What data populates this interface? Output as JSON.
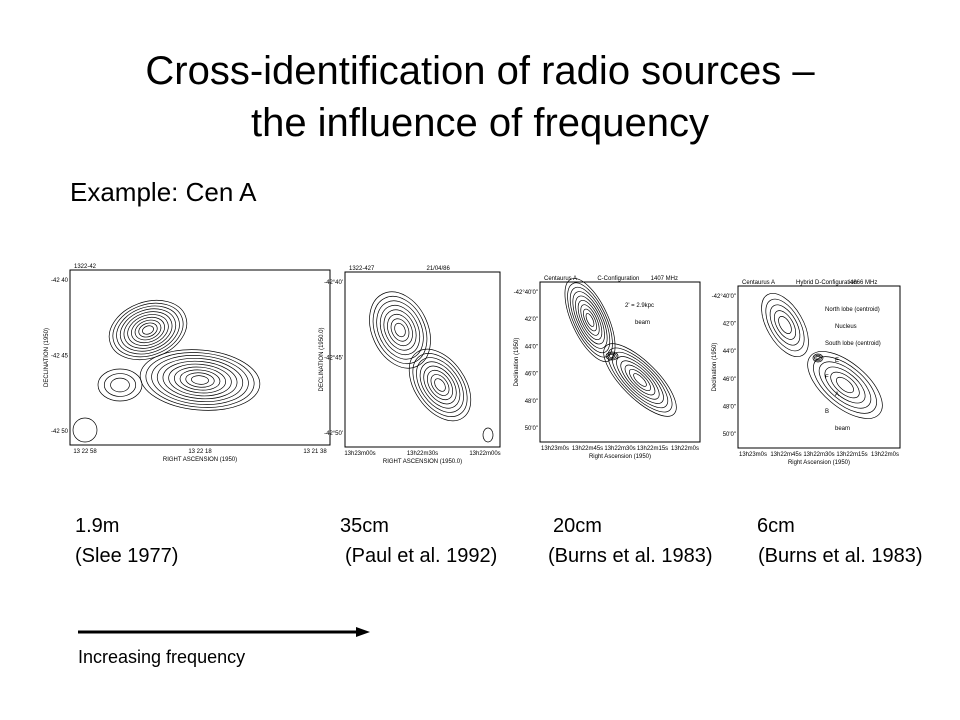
{
  "title_lines": [
    "Cross-identification of radio sources –",
    "the influence of frequency"
  ],
  "subtitle": "Example: Cen A",
  "panels": [
    {
      "header": [
        "1322-42"
      ],
      "ylabel": "DECLINATION (1950)",
      "xlabel": "RIGHT ASCENSION (1950)",
      "yticks": [
        "-42 40",
        "-42 45",
        "-42 50"
      ],
      "xticks": [
        "13 22 58",
        "13 22 18",
        "13 21 38"
      ],
      "annotations": [],
      "wavelength": "1.9m",
      "reference": "(Slee 1977)"
    },
    {
      "header": [
        "1322-427",
        "21/04/86"
      ],
      "ylabel": "DECLINATION (1950.0)",
      "xlabel": "RIGHT ASCENSION (1950.0)",
      "yticks": [
        "-42°40'",
        "-42°45'",
        "-42°50'"
      ],
      "xticks": [
        "13h23m00s",
        "13h22m30s",
        "13h22m00s"
      ],
      "annotations": [],
      "wavelength": "35cm",
      "reference": "(Paul et al. 1992)"
    },
    {
      "header": [
        "Centaurus A",
        "C-Configuration",
        "1407 MHz"
      ],
      "ylabel": "Declination (1950)",
      "xlabel": "Right Ascension (1950)",
      "yticks": [
        "-42°40'0\"",
        "42'0\"",
        "44'0\"",
        "46'0\"",
        "48'0\"",
        "50'0\""
      ],
      "xticks": [
        "13h23m0s",
        "13h22m45s",
        "13h22m30s",
        "13h22m15s",
        "13h22m0s"
      ],
      "annotations": [
        "2' = 2.9kpc",
        "beam"
      ],
      "wavelength": "20cm",
      "reference": "(Burns et al. 1983)"
    },
    {
      "header": [
        "Centaurus A",
        "Hybrid D-Configuration",
        "4866 MHz"
      ],
      "ylabel": "Declination (1950)",
      "xlabel": "Right Ascension (1950)",
      "yticks": [
        "-42°40'0\"",
        "42'0\"",
        "44'0\"",
        "46'0\"",
        "48'0\"",
        "50'0\""
      ],
      "xticks": [
        "13h23m0s",
        "13h22m45s",
        "13h22m30s",
        "13h22m15s",
        "13h22m0s"
      ],
      "annotations": [
        "North lobe (centroid)",
        "Nucleus",
        "South lobe (centroid)",
        "E",
        "F",
        "A",
        "B",
        "beam"
      ],
      "wavelength": "6cm",
      "reference": "(Burns et al. 1983)"
    }
  ],
  "arrow_label": "Increasing frequency"
}
